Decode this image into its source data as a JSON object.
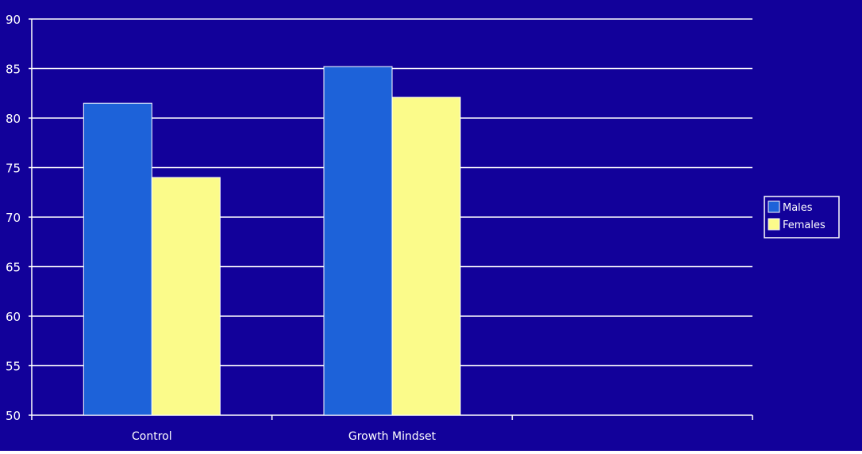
{
  "chart_data": {
    "type": "bar",
    "categories": [
      "Control",
      "Growth Mindset"
    ],
    "series": [
      {
        "name": "Males",
        "values": [
          81.5,
          85.2
        ]
      },
      {
        "name": "Females",
        "values": [
          74.0,
          82.1
        ]
      }
    ],
    "title": "",
    "xlabel": "",
    "ylabel": "",
    "ylim": [
      50,
      90
    ],
    "yticks": [
      50,
      55,
      60,
      65,
      70,
      75,
      80,
      85,
      90
    ],
    "grid": true,
    "legend_position": "right"
  },
  "colors": {
    "background": "#12019a",
    "gridline": "#ffffff",
    "axis_text": "#ffffff",
    "bar_outline": "#ffffff",
    "series": [
      "#1d62d9",
      "#fbfb8a"
    ],
    "legend_border": "#ffffff"
  }
}
